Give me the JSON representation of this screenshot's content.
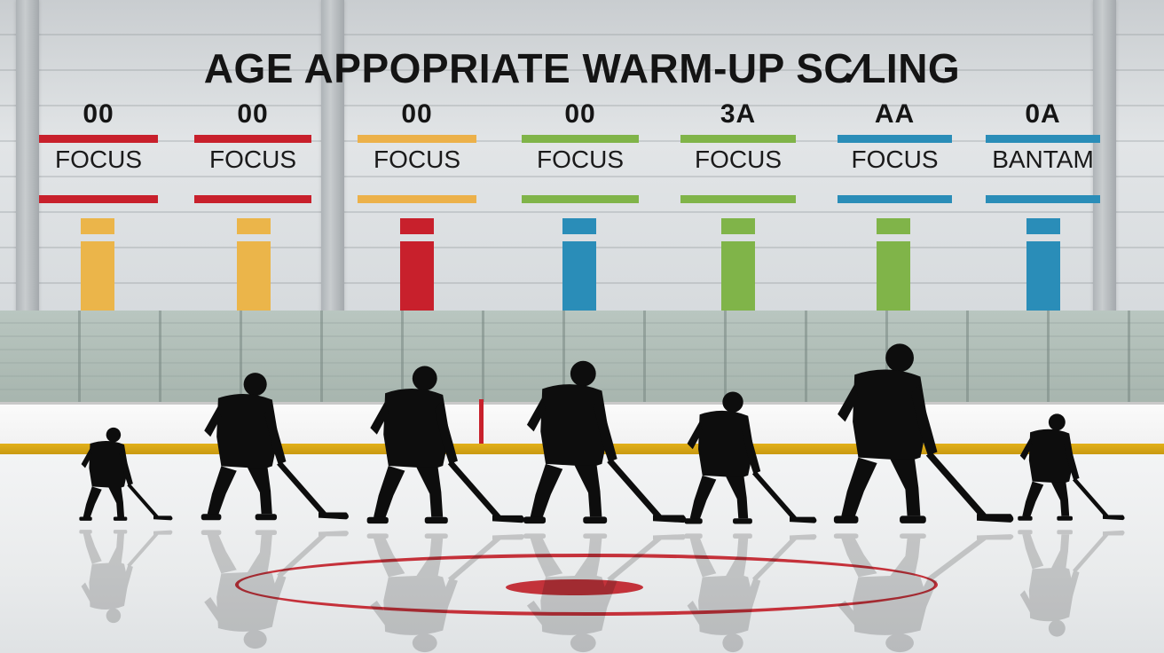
{
  "title": "AGE APPOPRIATE WARM-UP SC⁄LING",
  "groups": [
    {
      "number": "00",
      "label": "FOCUS",
      "stripe_color": "#c8202c",
      "bar_color": "#ebb54a"
    },
    {
      "number": "00",
      "label": "FOCUS",
      "stripe_color": "#c8202c",
      "bar_color": "#ebb54a"
    },
    {
      "number": "00",
      "label": "FOCUS",
      "stripe_color": "#ecb14a",
      "bar_color": "#c8202c"
    },
    {
      "number": "00",
      "label": "FOCUS",
      "stripe_color": "#80b449",
      "bar_color": "#2a8db8"
    },
    {
      "number": "3A",
      "label": "FOCUS",
      "stripe_color": "#80b449",
      "bar_color": "#80b449"
    },
    {
      "number": "AA",
      "label": "FOCUS",
      "stripe_color": "#2a8db8",
      "bar_color": "#80b449"
    },
    {
      "number": "0A",
      "label": "BANTAM",
      "stripe_color": "#2a8db8",
      "bar_color": "#2a8db8"
    }
  ],
  "palette": {
    "red": "#c8202c",
    "yellow": "#ebb54a",
    "green": "#80b449",
    "blue": "#2a8db8",
    "ice": "#eceeef",
    "silhouette": "#0d0d0d"
  }
}
